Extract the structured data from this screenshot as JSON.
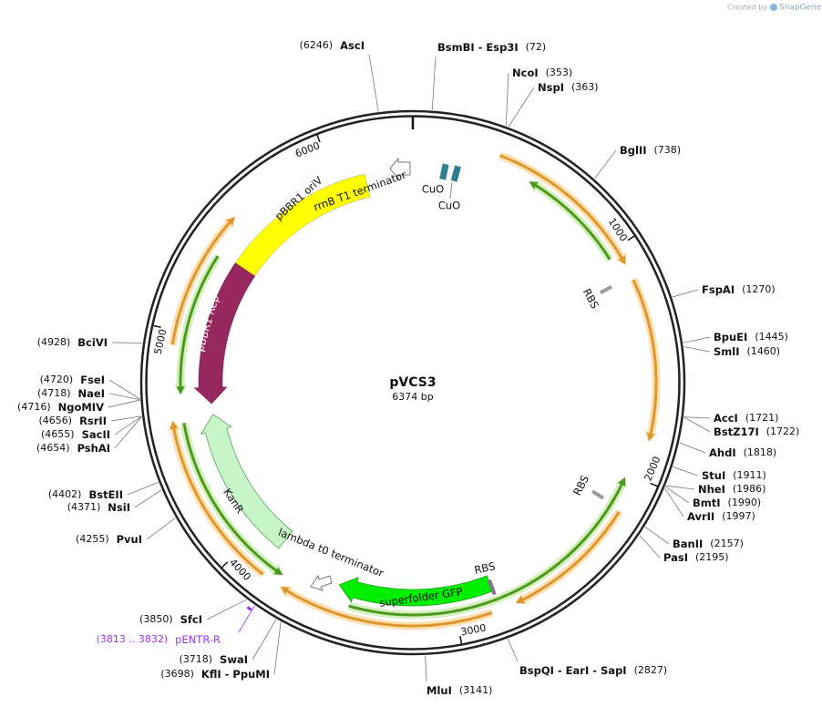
{
  "header": {
    "credit": "Created by",
    "brand": "SnapGene"
  },
  "plasmid": {
    "name": "pVCS3",
    "length_label": "6374 bp"
  },
  "ticks": [
    "1000",
    "2000",
    "3000",
    "4000",
    "5000",
    "6000"
  ],
  "sites": [
    {
      "name": "AscI",
      "position": "(6246)"
    },
    {
      "name": "BsmBI  - Esp3I",
      "position": "(72)"
    },
    {
      "name": "NcoI",
      "position": "(353)"
    },
    {
      "name": "NspI",
      "position": "(363)"
    },
    {
      "name": "BglII",
      "position": "(738)"
    },
    {
      "name": "FspAI",
      "position": "(1270)"
    },
    {
      "name": "BpuEI",
      "position": "(1445)"
    },
    {
      "name": "SmlI",
      "position": "(1460)"
    },
    {
      "name": "AccI",
      "position": "(1721)"
    },
    {
      "name": "BstZ17I",
      "position": "(1722)"
    },
    {
      "name": "AhdI",
      "position": "(1818)"
    },
    {
      "name": "StuI",
      "position": "(1911)"
    },
    {
      "name": "NheI",
      "position": "(1986)"
    },
    {
      "name": "BmtI",
      "position": "(1990)"
    },
    {
      "name": "AvrII",
      "position": "(1997)"
    },
    {
      "name": "BanII",
      "position": "(2157)"
    },
    {
      "name": "PasI",
      "position": "(2195)"
    },
    {
      "name": "BspQI  - EarI  - SapI",
      "position": "(2827)"
    },
    {
      "name": "MluI",
      "position": "(3141)"
    },
    {
      "name": "SwaI",
      "position": "(3718)"
    },
    {
      "name": "KflI  - PpuMI",
      "position": "(3698)"
    },
    {
      "name": "SfcI",
      "position": "(3850)"
    },
    {
      "name": "PvuI",
      "position": "(4255)"
    },
    {
      "name": "NsiI",
      "position": "(4371)"
    },
    {
      "name": "BstEII",
      "position": "(4402)"
    },
    {
      "name": "PshAI",
      "position": "(4654)"
    },
    {
      "name": "SacII",
      "position": "(4655)"
    },
    {
      "name": "RsrII",
      "position": "(4656)"
    },
    {
      "name": "NgoMIV",
      "position": "(4716)"
    },
    {
      "name": "NaeI",
      "position": "(4718)"
    },
    {
      "name": "FseI",
      "position": "(4720)"
    },
    {
      "name": "BciVI",
      "position": "(4928)"
    }
  ],
  "primer": {
    "name": "pENTR-R",
    "position": "(3813 .. 3832)"
  },
  "features": [
    {
      "label": "pBBR1 oriV"
    },
    {
      "label": "pBBR1 Rep"
    },
    {
      "label": "KanR"
    },
    {
      "label": "superfolder GFP"
    },
    {
      "label": "rrnB T1 terminator"
    },
    {
      "label": "lambda t0 terminator"
    },
    {
      "label": "CuO"
    },
    {
      "label": "CuO"
    },
    {
      "label": "RBS"
    },
    {
      "label": "RBS"
    },
    {
      "label": "RBS"
    }
  ]
}
